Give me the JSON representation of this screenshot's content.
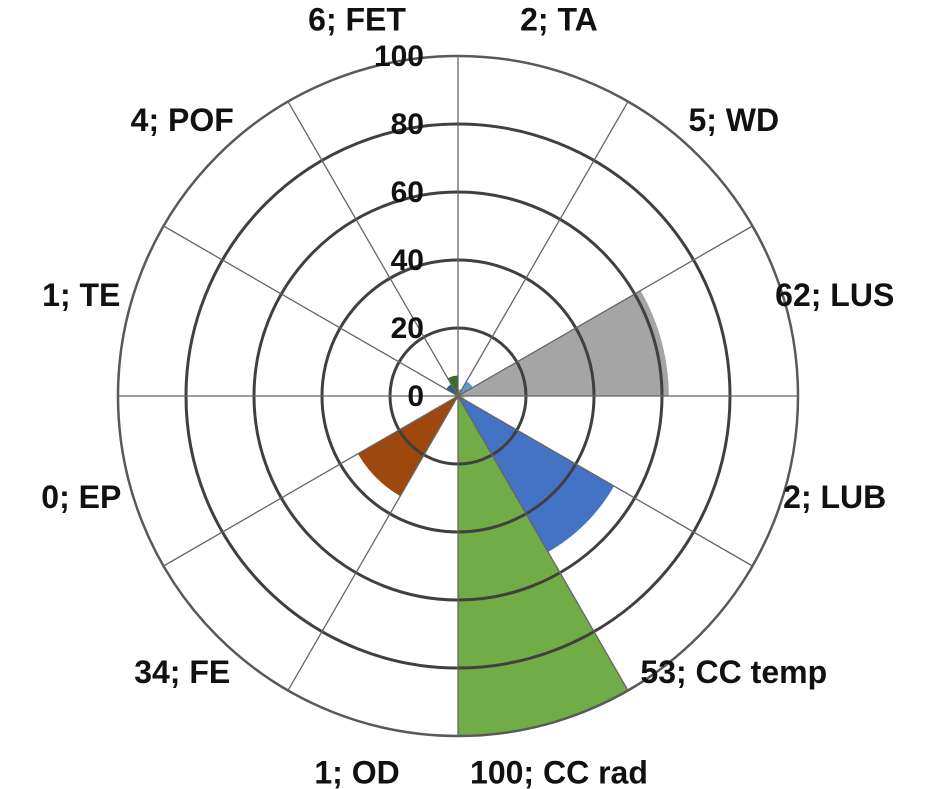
{
  "chart_data": {
    "type": "polar-area",
    "rmax": 100,
    "rticks": [
      0,
      20,
      40,
      60,
      80,
      100
    ],
    "rtick_labels": [
      "0",
      "20",
      "40",
      "60",
      "80",
      "100"
    ],
    "grid": true,
    "categories": [
      {
        "name": "TA",
        "value": 2,
        "label": "2; TA",
        "color": "#ED7D31"
      },
      {
        "name": "WD",
        "value": 5,
        "label": "5; WD",
        "color": "#5B9BD5"
      },
      {
        "name": "LUS",
        "value": 62,
        "label": "62; LUS",
        "color": "#A5A5A5"
      },
      {
        "name": "LUB",
        "value": 2,
        "label": "2; LUB",
        "color": "#FFC000"
      },
      {
        "name": "CC temp",
        "value": 53,
        "label": "53; CC temp",
        "color": "#4472C4"
      },
      {
        "name": "CC rad",
        "value": 100,
        "label": "100; CC rad",
        "color": "#70AD47"
      },
      {
        "name": "OD",
        "value": 1,
        "label": "1; OD",
        "color": "#264478"
      },
      {
        "name": "FE",
        "value": 34,
        "label": "34; FE",
        "color": "#9E480E"
      },
      {
        "name": "EP",
        "value": 0,
        "label": "0; EP",
        "color": "#636363"
      },
      {
        "name": "TE",
        "value": 1,
        "label": "1; TE",
        "color": "#997300"
      },
      {
        "name": "POF",
        "value": 4,
        "label": "4; POF",
        "color": "#255E91"
      },
      {
        "name": "FET",
        "value": 6,
        "label": "6; FET",
        "color": "#43682B"
      }
    ]
  }
}
